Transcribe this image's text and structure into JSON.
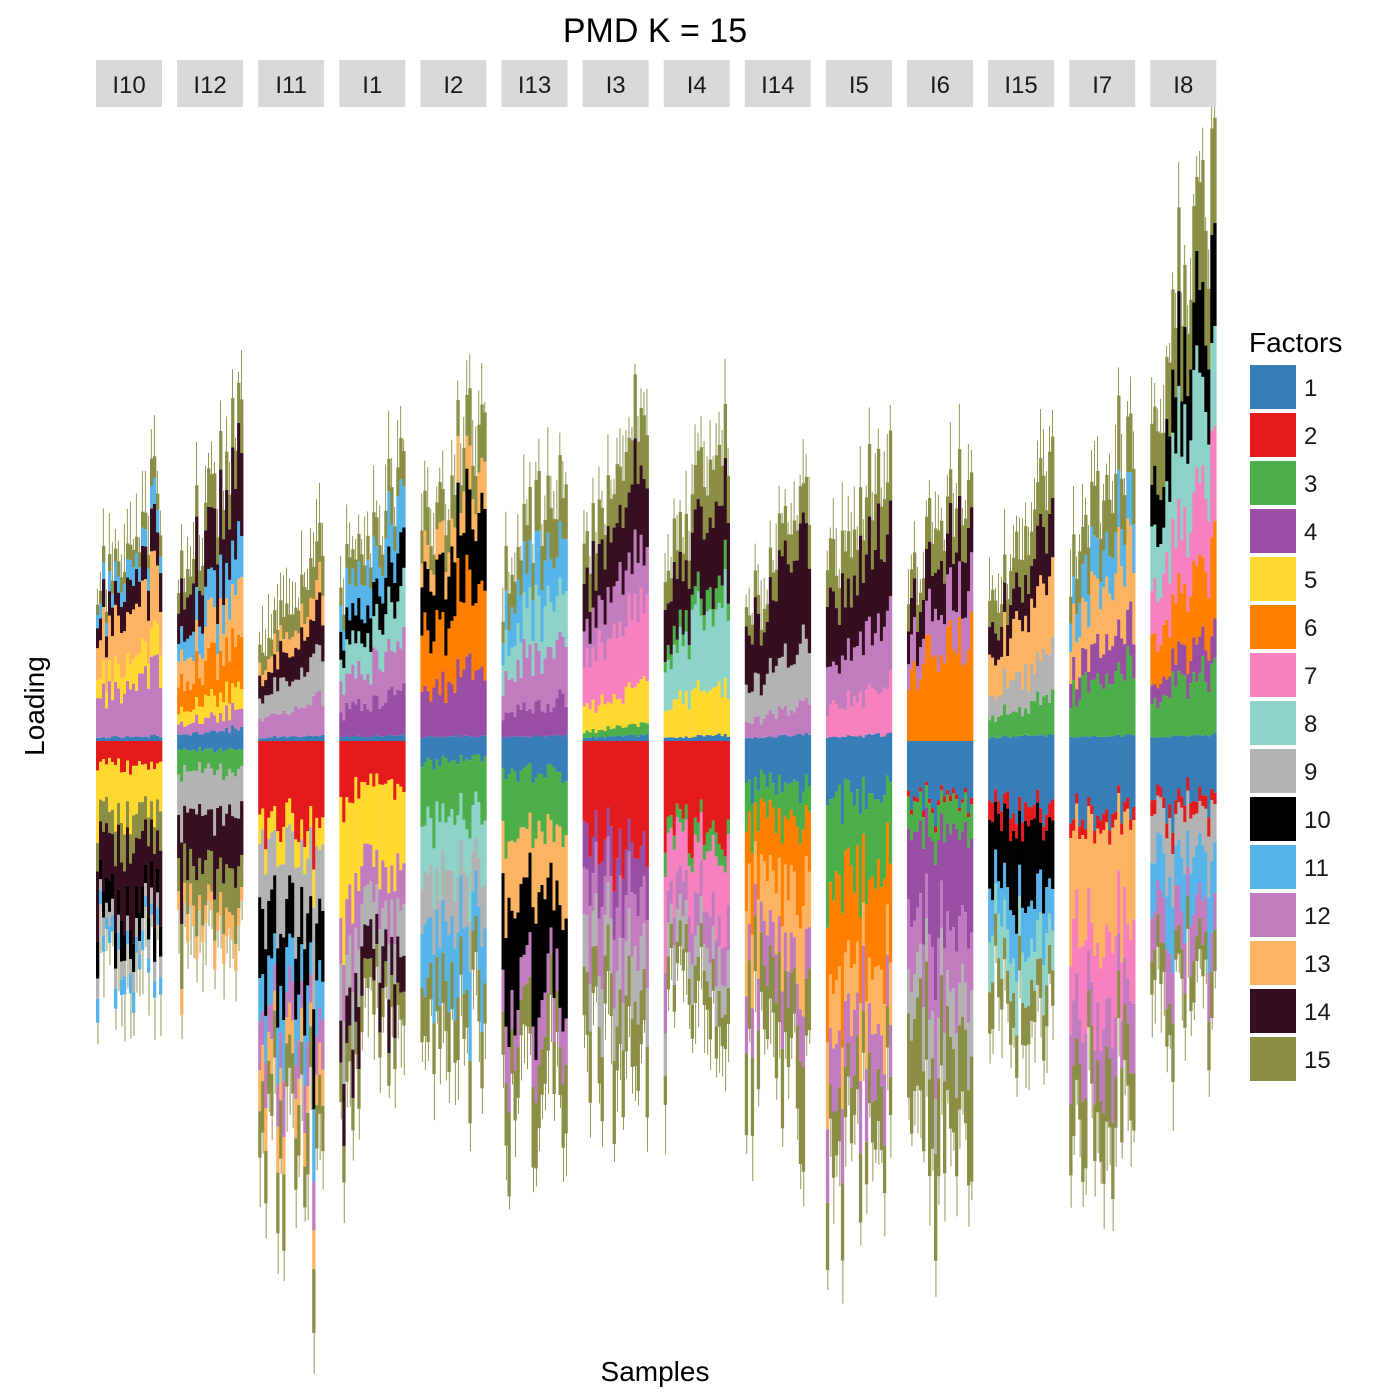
{
  "chart_data": {
    "type": "bar",
    "title": "PMD K = 15",
    "xlabel": "Samples",
    "ylabel": "Loading",
    "grid": false,
    "legend_title": "Factors",
    "legend_position": "right",
    "facets": [
      {
        "label": "I10",
        "top": 0.45,
        "bottom": 0.54,
        "upper": [
          [
            1,
            0.01
          ],
          [
            12,
            0.12
          ],
          [
            5,
            0.06
          ],
          [
            13,
            0.12
          ],
          [
            14,
            0.07
          ],
          [
            11,
            0.04
          ],
          [
            15,
            0.04
          ]
        ],
        "lower": [
          [
            2,
            0.06
          ],
          [
            5,
            0.12
          ],
          [
            15,
            0.07
          ],
          [
            14,
            0.14
          ],
          [
            10,
            0.07
          ],
          [
            9,
            0.04
          ],
          [
            11,
            0.04
          ]
        ]
      },
      {
        "label": "I12",
        "top": 0.55,
        "bottom": 0.45,
        "upper": [
          [
            1,
            0.02
          ],
          [
            12,
            0.03
          ],
          [
            5,
            0.04
          ],
          [
            6,
            0.08
          ],
          [
            13,
            0.08
          ],
          [
            11,
            0.07
          ],
          [
            14,
            0.13
          ],
          [
            15,
            0.07
          ]
        ],
        "lower": [
          [
            1,
            0.02
          ],
          [
            3,
            0.05
          ],
          [
            9,
            0.1
          ],
          [
            14,
            0.13
          ],
          [
            15,
            0.1
          ],
          [
            13,
            0.05
          ]
        ]
      },
      {
        "label": "I11",
        "top": 0.31,
        "bottom": 0.95,
        "upper": [
          [
            1,
            0.01
          ],
          [
            12,
            0.06
          ],
          [
            9,
            0.07
          ],
          [
            14,
            0.07
          ],
          [
            13,
            0.04
          ],
          [
            15,
            0.06
          ]
        ],
        "lower": [
          [
            2,
            0.17
          ],
          [
            5,
            0.05
          ],
          [
            9,
            0.14
          ],
          [
            10,
            0.14
          ],
          [
            11,
            0.1
          ],
          [
            12,
            0.08
          ],
          [
            13,
            0.07
          ],
          [
            15,
            0.1
          ]
        ]
      },
      {
        "label": "I1",
        "top": 0.49,
        "bottom": 0.74,
        "upper": [
          [
            1,
            0.01
          ],
          [
            4,
            0.07
          ],
          [
            12,
            0.08
          ],
          [
            8,
            0.08
          ],
          [
            10,
            0.07
          ],
          [
            11,
            0.08
          ],
          [
            15,
            0.06
          ]
        ],
        "lower": [
          [
            2,
            0.11
          ],
          [
            5,
            0.2
          ],
          [
            12,
            0.11
          ],
          [
            9,
            0.1
          ],
          [
            14,
            0.1
          ],
          [
            15,
            0.07
          ]
        ]
      },
      {
        "label": "I2",
        "top": 0.61,
        "bottom": 0.7,
        "upper": [
          [
            1,
            0.01
          ],
          [
            4,
            0.12
          ],
          [
            6,
            0.15
          ],
          [
            10,
            0.14
          ],
          [
            13,
            0.07
          ],
          [
            15,
            0.08
          ]
        ],
        "lower": [
          [
            1,
            0.04
          ],
          [
            3,
            0.12
          ],
          [
            8,
            0.12
          ],
          [
            9,
            0.1
          ],
          [
            11,
            0.13
          ],
          [
            15,
            0.1
          ]
        ]
      },
      {
        "label": "I13",
        "top": 0.5,
        "bottom": 0.79,
        "upper": [
          [
            1,
            0.01
          ],
          [
            4,
            0.06
          ],
          [
            12,
            0.1
          ],
          [
            8,
            0.09
          ],
          [
            11,
            0.1
          ],
          [
            15,
            0.09
          ]
        ],
        "lower": [
          [
            1,
            0.06
          ],
          [
            3,
            0.11
          ],
          [
            13,
            0.11
          ],
          [
            10,
            0.18
          ],
          [
            12,
            0.08
          ],
          [
            15,
            0.1
          ]
        ]
      },
      {
        "label": "I3",
        "top": 0.6,
        "bottom": 0.75,
        "upper": [
          [
            1,
            0.01
          ],
          [
            3,
            0.02
          ],
          [
            5,
            0.07
          ],
          [
            7,
            0.14
          ],
          [
            12,
            0.1
          ],
          [
            14,
            0.13
          ],
          [
            15,
            0.1
          ]
        ],
        "lower": [
          [
            2,
            0.21
          ],
          [
            4,
            0.09
          ],
          [
            12,
            0.12
          ],
          [
            9,
            0.1
          ],
          [
            15,
            0.12
          ]
        ]
      },
      {
        "label": "I4",
        "top": 0.58,
        "bottom": 0.66,
        "upper": [
          [
            1,
            0.01
          ],
          [
            5,
            0.09
          ],
          [
            8,
            0.15
          ],
          [
            3,
            0.04
          ],
          [
            14,
            0.14
          ],
          [
            15,
            0.09
          ]
        ],
        "lower": [
          [
            2,
            0.22
          ],
          [
            3,
            0.04
          ],
          [
            7,
            0.14
          ],
          [
            12,
            0.09
          ],
          [
            9,
            0.08
          ],
          [
            15,
            0.07
          ]
        ]
      },
      {
        "label": "I14",
        "top": 0.42,
        "bottom": 0.8,
        "upper": [
          [
            1,
            0.01
          ],
          [
            12,
            0.05
          ],
          [
            9,
            0.11
          ],
          [
            14,
            0.17
          ],
          [
            15,
            0.06
          ]
        ],
        "lower": [
          [
            1,
            0.1
          ],
          [
            3,
            0.08
          ],
          [
            6,
            0.15
          ],
          [
            13,
            0.15
          ],
          [
            12,
            0.1
          ],
          [
            15,
            0.14
          ]
        ]
      },
      {
        "label": "I5",
        "top": 0.51,
        "bottom": 0.92,
        "upper": [
          [
            1,
            0.01
          ],
          [
            7,
            0.07
          ],
          [
            12,
            0.1
          ],
          [
            14,
            0.14
          ],
          [
            15,
            0.1
          ]
        ],
        "lower": [
          [
            1,
            0.11
          ],
          [
            3,
            0.16
          ],
          [
            6,
            0.2
          ],
          [
            13,
            0.12
          ],
          [
            12,
            0.12
          ],
          [
            15,
            0.1
          ]
        ]
      },
      {
        "label": "I6",
        "top": 0.48,
        "bottom": 0.97,
        "upper": [
          [
            6,
            0.2
          ],
          [
            12,
            0.1
          ],
          [
            14,
            0.1
          ],
          [
            15,
            0.08
          ]
        ],
        "lower": [
          [
            1,
            0.12
          ],
          [
            2,
            0.01
          ],
          [
            3,
            0.06
          ],
          [
            4,
            0.2
          ],
          [
            12,
            0.13
          ],
          [
            9,
            0.1
          ],
          [
            15,
            0.2
          ]
        ]
      },
      {
        "label": "I15",
        "top": 0.45,
        "bottom": 0.66,
        "upper": [
          [
            1,
            0.01
          ],
          [
            3,
            0.06
          ],
          [
            9,
            0.07
          ],
          [
            13,
            0.12
          ],
          [
            14,
            0.08
          ],
          [
            15,
            0.08
          ]
        ],
        "lower": [
          [
            1,
            0.12
          ],
          [
            2,
            0.03
          ],
          [
            10,
            0.13
          ],
          [
            11,
            0.08
          ],
          [
            8,
            0.08
          ],
          [
            15,
            0.07
          ]
        ]
      },
      {
        "label": "I7",
        "top": 0.55,
        "bottom": 0.92,
        "upper": [
          [
            1,
            0.01
          ],
          [
            3,
            0.11
          ],
          [
            4,
            0.06
          ],
          [
            13,
            0.11
          ],
          [
            11,
            0.08
          ],
          [
            15,
            0.1
          ]
        ],
        "lower": [
          [
            1,
            0.13
          ],
          [
            2,
            0.02
          ],
          [
            13,
            0.19
          ],
          [
            7,
            0.13
          ],
          [
            12,
            0.1
          ],
          [
            15,
            0.1
          ]
        ]
      },
      {
        "label": "I8",
        "top": 1.0,
        "bottom": 0.62,
        "upper": [
          [
            1,
            0.01
          ],
          [
            3,
            0.1
          ],
          [
            4,
            0.05
          ],
          [
            6,
            0.12
          ],
          [
            7,
            0.13
          ],
          [
            8,
            0.17
          ],
          [
            10,
            0.14
          ],
          [
            15,
            0.15
          ]
        ],
        "lower": [
          [
            1,
            0.13
          ],
          [
            2,
            0.03
          ],
          [
            9,
            0.1
          ],
          [
            11,
            0.12
          ],
          [
            12,
            0.1
          ],
          [
            15,
            0.08
          ]
        ]
      }
    ],
    "factors": [
      {
        "label": "1",
        "color": "#377EB8"
      },
      {
        "label": "2",
        "color": "#E41A1C"
      },
      {
        "label": "3",
        "color": "#4DAF4A"
      },
      {
        "label": "4",
        "color": "#984EA3"
      },
      {
        "label": "5",
        "color": "#FFD92F"
      },
      {
        "label": "6",
        "color": "#FF7F00"
      },
      {
        "label": "7",
        "color": "#F781BF"
      },
      {
        "label": "8",
        "color": "#8DD3C7"
      },
      {
        "label": "9",
        "color": "#B3B3B3"
      },
      {
        "label": "10",
        "color": "#000000"
      },
      {
        "label": "11",
        "color": "#56B4E9"
      },
      {
        "label": "12",
        "color": "#C17CBF"
      },
      {
        "label": "13",
        "color": "#FDB462"
      },
      {
        "label": "14",
        "color": "#350E20"
      },
      {
        "label": "15",
        "color": "#8B8E45"
      }
    ]
  }
}
